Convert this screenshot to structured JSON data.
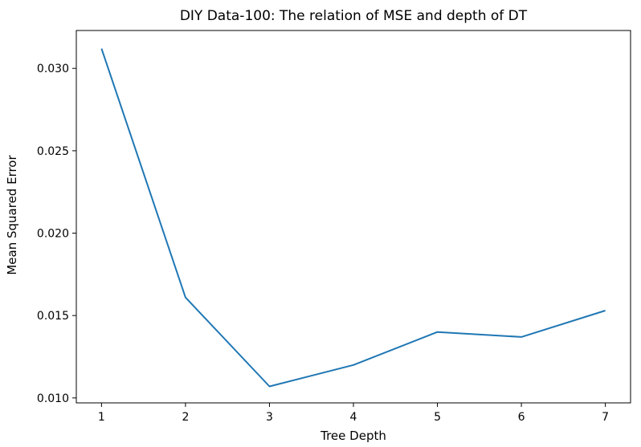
{
  "chart_data": {
    "type": "line",
    "title": "DIY Data-100: The relation of MSE and depth of DT",
    "xlabel": "Tree Depth",
    "ylabel": "Mean Squared Error",
    "x": [
      1,
      2,
      3,
      4,
      5,
      6,
      7
    ],
    "series": [
      {
        "name": "MSE",
        "values": [
          0.0312,
          0.0161,
          0.0107,
          0.012,
          0.014,
          0.0137,
          0.0153
        ],
        "color": "#1f77b4"
      }
    ],
    "xlim": [
      0.7,
      7.3
    ],
    "ylim": [
      0.0097,
      0.0323
    ],
    "xticks": [
      1,
      2,
      3,
      4,
      5,
      6,
      7
    ],
    "yticks": [
      0.01,
      0.015,
      0.02,
      0.025,
      0.03
    ],
    "xtick_labels": [
      "1",
      "2",
      "3",
      "4",
      "5",
      "6",
      "7"
    ],
    "ytick_labels": [
      "0.010",
      "0.015",
      "0.020",
      "0.025",
      "0.030"
    ],
    "grid": false,
    "legend": "none"
  }
}
